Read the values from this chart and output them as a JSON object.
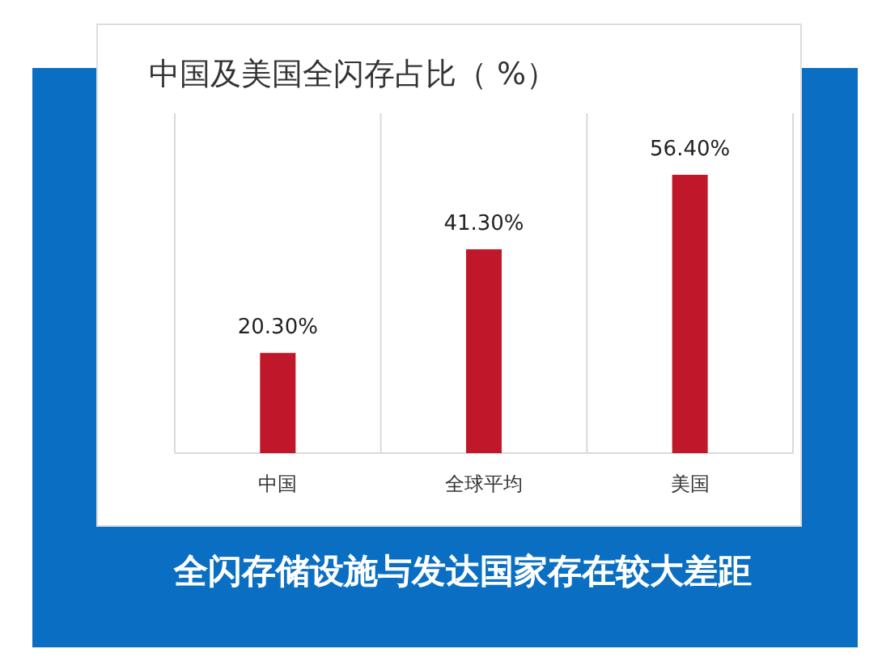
{
  "chart_data": {
    "type": "bar",
    "title": "中国及美国全闪存占比（  %）",
    "categories": [
      "中国",
      "全球平均",
      "美国"
    ],
    "values": [
      20.3,
      41.3,
      56.4
    ],
    "value_labels": [
      "20.30%",
      "41.30%",
      "56.40%"
    ],
    "color": "#c0182a",
    "grid": "x",
    "annotations": [
      "全闪存储设施与发达国家存在较大差距"
    ]
  }
}
